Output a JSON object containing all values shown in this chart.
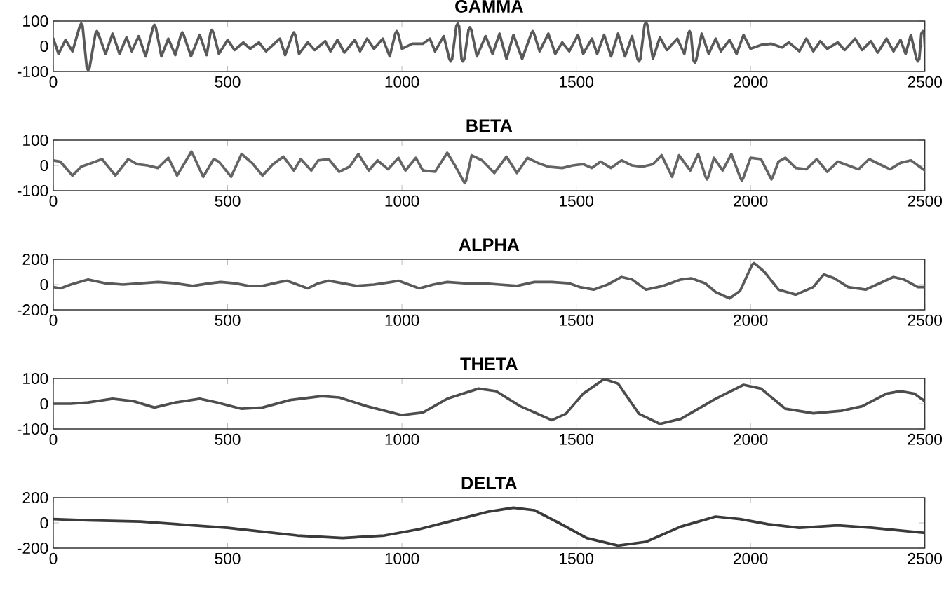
{
  "chart_data": [
    {
      "type": "line",
      "title": "GAMMA",
      "color": "#595959",
      "xlim": [
        0,
        2500
      ],
      "xticks": [
        0,
        500,
        1000,
        1500,
        2000,
        2500
      ],
      "ylim": [
        -100,
        100
      ],
      "yticks": [
        -100,
        0,
        100
      ],
      "x": [
        0,
        15,
        35,
        55,
        76,
        80,
        84,
        96,
        100,
        104,
        121,
        125,
        129,
        150,
        170,
        190,
        210,
        225,
        245,
        265,
        286,
        290,
        294,
        310,
        330,
        350,
        366,
        370,
        374,
        395,
        420,
        440,
        451,
        455,
        459,
        475,
        500,
        520,
        545,
        565,
        590,
        610,
        650,
        665,
        686,
        690,
        694,
        705,
        730,
        750,
        780,
        795,
        815,
        835,
        865,
        880,
        900,
        920,
        945,
        965,
        981,
        985,
        989,
        1000,
        1030,
        1060,
        1080,
        1095,
        1120,
        1136,
        1140,
        1144,
        1156,
        1160,
        1164,
        1171,
        1175,
        1179,
        1191,
        1195,
        1199,
        1215,
        1240,
        1260,
        1280,
        1300,
        1320,
        1345,
        1371,
        1375,
        1379,
        1395,
        1420,
        1440,
        1460,
        1480,
        1505,
        1520,
        1545,
        1560,
        1580,
        1600,
        1620,
        1640,
        1660,
        1676,
        1680,
        1684,
        1696,
        1700,
        1704,
        1720,
        1740,
        1760,
        1790,
        1810,
        1821,
        1825,
        1829,
        1836,
        1840,
        1844,
        1860,
        1880,
        1900,
        1915,
        1940,
        1960,
        1980,
        2000,
        2030,
        2060,
        2090,
        2110,
        2140,
        2160,
        2180,
        2200,
        2220,
        2250,
        2270,
        2300,
        2320,
        2345,
        2365,
        2390,
        2410,
        2430,
        2445,
        2460,
        2476,
        2480,
        2484,
        2490,
        2494,
        2498,
        2500
      ],
      "values": [
        30,
        -30,
        25,
        -20,
        80,
        90,
        80,
        -85,
        -95,
        -85,
        50,
        60,
        50,
        -30,
        50,
        -30,
        35,
        -20,
        40,
        -40,
        75,
        85,
        75,
        -40,
        30,
        -35,
        45,
        55,
        45,
        -40,
        45,
        -35,
        55,
        65,
        55,
        -30,
        25,
        -15,
        15,
        -10,
        15,
        -20,
        30,
        -35,
        45,
        55,
        45,
        -30,
        15,
        -15,
        20,
        -20,
        25,
        -25,
        25,
        -20,
        30,
        -10,
        30,
        -40,
        50,
        60,
        50,
        -10,
        10,
        10,
        30,
        -20,
        40,
        -50,
        -60,
        -50,
        80,
        90,
        80,
        -50,
        -60,
        -50,
        65,
        75,
        65,
        -40,
        40,
        -30,
        50,
        -50,
        45,
        -50,
        50,
        60,
        50,
        -20,
        50,
        -30,
        15,
        -20,
        45,
        -30,
        30,
        -30,
        45,
        -40,
        50,
        -40,
        40,
        -50,
        -60,
        -50,
        85,
        95,
        85,
        -50,
        35,
        -15,
        30,
        -30,
        50,
        60,
        50,
        -55,
        -65,
        -55,
        50,
        -30,
        30,
        -20,
        25,
        -30,
        45,
        -10,
        5,
        10,
        -5,
        15,
        -20,
        30,
        -20,
        20,
        -10,
        15,
        -15,
        30,
        -15,
        20,
        -25,
        30,
        -20,
        25,
        -30,
        45,
        -50,
        -60,
        -50,
        50,
        60,
        50,
        0
      ]
    },
    {
      "type": "line",
      "title": "BETA",
      "color": "#646464",
      "xlim": [
        0,
        2500
      ],
      "xticks": [
        0,
        500,
        1000,
        1500,
        2000,
        2500
      ],
      "ylim": [
        -100,
        100
      ],
      "yticks": [
        -100,
        0,
        100
      ],
      "x": [
        0,
        20,
        55,
        80,
        110,
        140,
        178,
        215,
        240,
        270,
        300,
        330,
        355,
        392,
        396,
        400,
        430,
        460,
        475,
        510,
        540,
        570,
        600,
        630,
        660,
        690,
        710,
        740,
        760,
        790,
        820,
        850,
        875,
        905,
        930,
        960,
        990,
        1010,
        1040,
        1060,
        1095,
        1130,
        1150,
        1176,
        1180,
        1184,
        1200,
        1230,
        1265,
        1300,
        1330,
        1360,
        1390,
        1420,
        1460,
        1490,
        1520,
        1545,
        1570,
        1600,
        1630,
        1660,
        1690,
        1720,
        1745,
        1775,
        1795,
        1827,
        1850,
        1871,
        1875,
        1879,
        1895,
        1920,
        1945,
        1971,
        1975,
        1979,
        2000,
        2030,
        2056,
        2060,
        2064,
        2080,
        2100,
        2130,
        2160,
        2190,
        2220,
        2250,
        2280,
        2310,
        2340,
        2370,
        2400,
        2430,
        2460,
        2500
      ],
      "values": [
        20,
        15,
        -40,
        -5,
        10,
        25,
        -40,
        25,
        5,
        0,
        -10,
        30,
        -40,
        45,
        55,
        45,
        -45,
        25,
        15,
        -45,
        45,
        10,
        -40,
        5,
        35,
        -20,
        25,
        -20,
        20,
        25,
        -25,
        -5,
        45,
        -20,
        20,
        -15,
        30,
        -20,
        30,
        -20,
        -25,
        50,
        5,
        -60,
        -70,
        -60,
        40,
        20,
        -30,
        35,
        -30,
        30,
        10,
        -5,
        -10,
        0,
        5,
        -10,
        15,
        -10,
        20,
        0,
        -5,
        5,
        40,
        -45,
        40,
        -20,
        45,
        -45,
        -55,
        -45,
        30,
        -20,
        45,
        -50,
        -60,
        -50,
        30,
        25,
        -45,
        -55,
        -45,
        15,
        30,
        -10,
        -15,
        25,
        -25,
        15,
        0,
        -15,
        25,
        5,
        -15,
        10,
        20,
        -20
      ]
    },
    {
      "type": "line",
      "title": "ALPHA",
      "color": "#595959",
      "xlim": [
        0,
        2500
      ],
      "xticks": [
        0,
        500,
        1000,
        1500,
        2000,
        2500
      ],
      "ylim": [
        -200,
        200
      ],
      "yticks": [
        -200,
        0,
        200
      ],
      "x": [
        0,
        20,
        50,
        100,
        150,
        200,
        250,
        300,
        350,
        400,
        450,
        480,
        520,
        560,
        600,
        650,
        670,
        700,
        730,
        760,
        790,
        830,
        870,
        920,
        970,
        990,
        1020,
        1050,
        1090,
        1130,
        1180,
        1230,
        1280,
        1330,
        1380,
        1430,
        1480,
        1510,
        1550,
        1590,
        1630,
        1660,
        1700,
        1750,
        1800,
        1830,
        1870,
        1900,
        1940,
        1970,
        2005,
        2010,
        2015,
        2040,
        2080,
        2130,
        2180,
        2210,
        2240,
        2280,
        2330,
        2370,
        2410,
        2440,
        2480,
        2500
      ],
      "values": [
        -20,
        -30,
        0,
        40,
        10,
        0,
        10,
        20,
        10,
        -10,
        10,
        20,
        10,
        -10,
        -10,
        20,
        30,
        0,
        -30,
        10,
        30,
        10,
        -10,
        0,
        20,
        30,
        0,
        -30,
        0,
        20,
        10,
        10,
        0,
        -10,
        20,
        20,
        10,
        -20,
        -40,
        0,
        60,
        40,
        -40,
        -10,
        40,
        50,
        10,
        -60,
        -110,
        -50,
        160,
        170,
        160,
        100,
        -40,
        -80,
        -20,
        80,
        50,
        -20,
        -40,
        10,
        60,
        40,
        -20,
        -20
      ]
    },
    {
      "type": "line",
      "title": "THETA",
      "color": "#4d4d4d",
      "xlim": [
        0,
        2500
      ],
      "xticks": [
        0,
        500,
        1000,
        1500,
        2000,
        2500
      ],
      "ylim": [
        -100,
        100
      ],
      "yticks": [
        -100,
        0,
        100
      ],
      "x": [
        0,
        50,
        100,
        170,
        230,
        290,
        350,
        420,
        470,
        540,
        600,
        680,
        770,
        820,
        900,
        1000,
        1060,
        1130,
        1220,
        1270,
        1340,
        1430,
        1470,
        1520,
        1580,
        1620,
        1680,
        1740,
        1800,
        1900,
        1980,
        2030,
        2100,
        2180,
        2260,
        2320,
        2390,
        2430,
        2470,
        2500
      ],
      "values": [
        0,
        0,
        5,
        20,
        10,
        -15,
        5,
        20,
        5,
        -20,
        -15,
        15,
        30,
        25,
        -10,
        -45,
        -35,
        20,
        60,
        50,
        -10,
        -65,
        -40,
        40,
        98,
        80,
        -40,
        -80,
        -60,
        20,
        75,
        60,
        -20,
        -38,
        -28,
        -10,
        40,
        50,
        40,
        10
      ]
    },
    {
      "type": "line",
      "title": "DELTA",
      "color": "#3a3a3a",
      "xlim": [
        0,
        2500
      ],
      "xticks": [
        0,
        500,
        1000,
        1500,
        2000,
        2500
      ],
      "ylim": [
        -200,
        200
      ],
      "yticks": [
        -200,
        0,
        200
      ],
      "x": [
        0,
        100,
        250,
        400,
        500,
        600,
        700,
        830,
        950,
        1050,
        1150,
        1250,
        1320,
        1380,
        1450,
        1530,
        1620,
        1700,
        1800,
        1900,
        1970,
        2050,
        2140,
        2250,
        2350,
        2500
      ],
      "values": [
        30,
        20,
        10,
        -20,
        -40,
        -70,
        -100,
        -120,
        -100,
        -50,
        20,
        90,
        120,
        100,
        0,
        -120,
        -180,
        -150,
        -30,
        50,
        30,
        -10,
        -40,
        -20,
        -40,
        -80
      ]
    }
  ]
}
